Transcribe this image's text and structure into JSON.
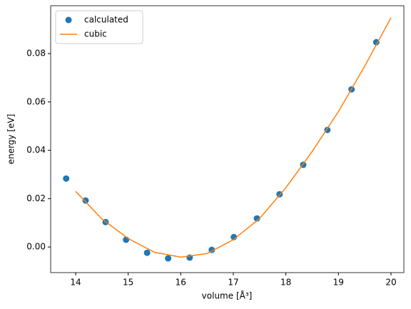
{
  "chart_data": {
    "type": "scatter",
    "xlabel": "volume [Å³]",
    "ylabel": "energy [eV]",
    "xlim": [
      13.525,
      20.245
    ],
    "ylim": [
      -0.0106,
      0.0998
    ],
    "xticks": [
      14,
      15,
      16,
      17,
      18,
      19,
      20
    ],
    "yticks": [
      {
        "value": 0,
        "label": "0.00"
      },
      0.02,
      0.04,
      0.06,
      0.08
    ],
    "legend": "upper left",
    "series": [
      {
        "name": "calculated",
        "type": "scatter",
        "color": "#1f77b4",
        "x": [
          13.82,
          14.19,
          14.57,
          14.96,
          15.36,
          15.76,
          16.17,
          16.59,
          17.01,
          17.45,
          17.88,
          18.33,
          18.79,
          19.25,
          19.72
        ],
        "values": [
          0.0283,
          0.0192,
          0.0103,
          0.003,
          -0.0024,
          -0.0047,
          -0.0044,
          -0.0012,
          0.0041,
          0.0118,
          0.0218,
          0.034,
          0.0484,
          0.0652,
          0.0847
        ]
      },
      {
        "name": "cubic",
        "type": "line",
        "color": "#ff7f0e",
        "x": [
          14,
          14.5,
          15,
          15.5,
          16,
          16.5,
          17,
          17.5,
          18,
          18.5,
          19,
          19.5,
          20
        ],
        "values": [
          0.023,
          0.0116,
          0.0035,
          -0.0022,
          -0.0042,
          -0.0027,
          0.003,
          0.0118,
          0.0245,
          0.0395,
          0.056,
          0.0748,
          0.0948
        ]
      }
    ]
  }
}
